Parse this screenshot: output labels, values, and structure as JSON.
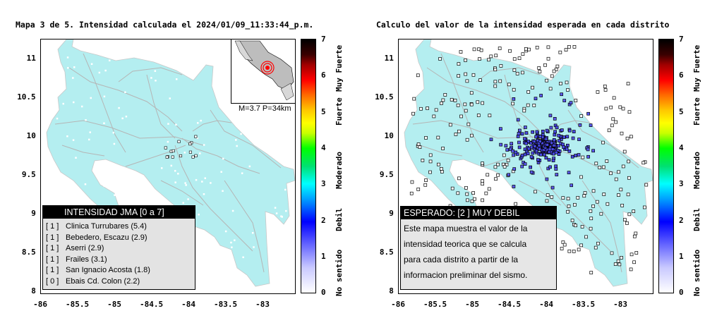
{
  "left_map": {
    "title": "Mapa 3 de 5. Intensidad calculada el 2024/01/09_11:33:44_p.m.",
    "legend": {
      "header": "INTENSIDAD JMA [0 a 7]",
      "stations": [
        {
          "count": "[ 1 ]",
          "label": "Clinica Turrubares (5.4)"
        },
        {
          "count": "[ 1 ]",
          "label": "Bebedero, Escazu (2.9)"
        },
        {
          "count": "[ 1 ]",
          "label": "Aserri (2.9)"
        },
        {
          "count": "[ 1 ]",
          "label": "Frailes (3.1)"
        },
        {
          "count": "[ 1 ]",
          "label": "San Ignacio Acosta (1.8)"
        },
        {
          "count": "[ 0 ]",
          "label": "Ebais Cd. Colon (2.2)"
        }
      ]
    },
    "inset_caption": "M=3.7 P=34km"
  },
  "right_map": {
    "title": "Calculo del valor de la intensidad esperada en cada distrito",
    "info_header": "ESPERADO: [2 ] MUY DEBIL",
    "info_lines": [
      "Este mapa muestra el valor de la",
      "intensidad teorica que se calcula",
      "para cada distrito a partir de la",
      "informacion preliminar del sismo."
    ]
  },
  "axes": {
    "x_ticks": [
      "-86",
      "-85.5",
      "-85",
      "-84.5",
      "-84",
      "-83.5",
      "-83"
    ],
    "y_ticks": [
      "11",
      "10.5",
      "10",
      "9.5",
      "9",
      "8.5",
      "8"
    ]
  },
  "colorbar": {
    "numbers": [
      "7",
      "6",
      "5",
      "4",
      "3",
      "2",
      "1",
      "0"
    ],
    "words": [
      "Muy Fuerte",
      "Fuerte",
      "Moderado",
      "Debil",
      "No sentido"
    ]
  },
  "colors": {
    "land": "#b4eef0",
    "roads": "#b5b5b5",
    "district_square_fill": "#aaaaee",
    "epicenter": "#ff0000"
  }
}
